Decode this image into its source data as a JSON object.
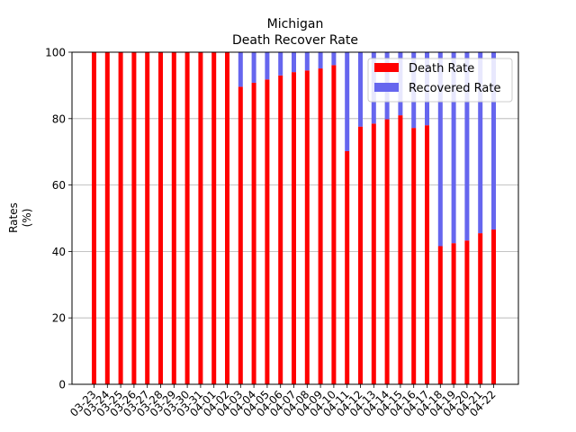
{
  "chart_data": {
    "type": "bar",
    "stacked": true,
    "title": "Michigan",
    "subtitle": "Death Recover Rate",
    "xlabel": "",
    "ylabel": "Rates\n(%)",
    "ylim": [
      0,
      100
    ],
    "yticks": [
      0,
      20,
      40,
      60,
      80,
      100
    ],
    "grid": "y",
    "legend_position": "top-right",
    "categories": [
      "03-23",
      "03-24",
      "03-25",
      "03-26",
      "03-27",
      "03-28",
      "03-29",
      "03-30",
      "03-31",
      "04-01",
      "04-02",
      "04-03",
      "04-04",
      "04-05",
      "04-06",
      "04-07",
      "04-08",
      "04-09",
      "04-10",
      "04-11",
      "04-12",
      "04-13",
      "04-14",
      "04-15",
      "04-16",
      "04-17",
      "04-18",
      "04-19",
      "04-20",
      "04-21",
      "04-22"
    ],
    "series": [
      {
        "name": "Death Rate",
        "color": "#ff0000",
        "values": [
          100,
          100,
          100,
          100,
          100,
          100,
          100,
          100,
          100,
          100,
          100,
          89.6,
          90.8,
          91.8,
          93.0,
          94.0,
          94.5,
          95.1,
          96.1,
          70.2,
          77.6,
          78.5,
          79.8,
          81.0,
          77.2,
          78.0,
          41.6,
          42.5,
          43.3,
          45.5,
          46.6
        ]
      },
      {
        "name": "Recovered Rate",
        "color": "#6666ee",
        "values": [
          0,
          0,
          0,
          0,
          0,
          0,
          0,
          0,
          0,
          0,
          0,
          10.4,
          9.2,
          8.2,
          7.0,
          6.0,
          5.5,
          4.9,
          3.9,
          29.8,
          22.4,
          21.5,
          20.2,
          19.0,
          22.8,
          22.0,
          58.4,
          57.5,
          56.7,
          54.5,
          53.4
        ]
      }
    ]
  }
}
